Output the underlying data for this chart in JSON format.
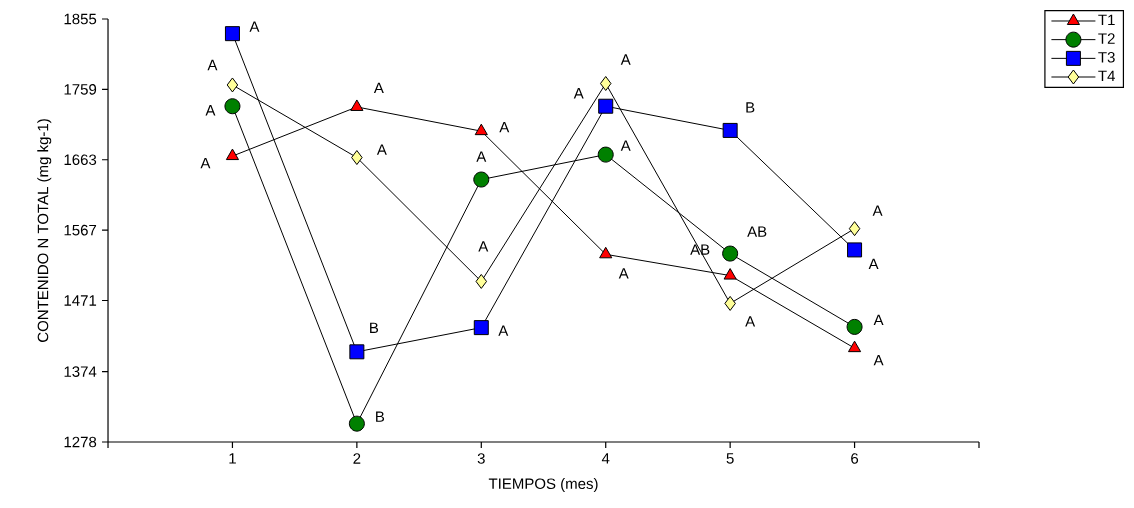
{
  "chart_data": {
    "type": "line",
    "xlabel": "TIEMPOS (mes)",
    "ylabel": "CONTENIDO N TOTAL (mg kg-1)",
    "xlim": [
      0,
      7
    ],
    "xticks": [
      {
        "value": 0,
        "label": null
      },
      1,
      2,
      3,
      4,
      5,
      6,
      {
        "value": 7,
        "label": null
      }
    ],
    "ylim": [
      1278,
      1855
    ],
    "yticks": [
      1278,
      1374,
      1471,
      1567,
      1663,
      1759,
      1855
    ],
    "x": [
      1,
      2,
      3,
      4,
      5,
      6
    ],
    "legend": "top right",
    "grid": false,
    "line_style": "solid",
    "series": [
      {
        "name": "T1",
        "color": "#ff0000",
        "marker": "triangle",
        "values": [
          1668,
          1735,
          1702,
          1534,
          1505,
          1406
        ]
      },
      {
        "name": "T2",
        "color": "#008000",
        "marker": "circle",
        "values": [
          1736,
          1303,
          1636,
          1670,
          1535,
          1435
        ]
      },
      {
        "name": "T3",
        "color": "#0000ff",
        "marker": "square",
        "values": [
          1835,
          1401,
          1434,
          1736,
          1703,
          1540
        ]
      },
      {
        "name": "T4",
        "color": "#ffff99",
        "marker": "diamond",
        "values": [
          1765,
          1666,
          1497,
          1767,
          1467,
          1569
        ]
      }
    ],
    "annotations": [
      {
        "text": "A",
        "x": 1,
        "y": 1668
      },
      {
        "text": "A",
        "x": 2,
        "y": 1735
      },
      {
        "text": "A",
        "x": 3,
        "y": 1702
      },
      {
        "text": "A",
        "x": 4,
        "y": 1534
      },
      {
        "text": "AB",
        "x": 5,
        "y": 1505
      },
      {
        "text": "A",
        "x": 6,
        "y": 1406
      },
      {
        "text": "A",
        "x": 1,
        "y": 1736
      },
      {
        "text": "B",
        "x": 2,
        "y": 1303
      },
      {
        "text": "A",
        "x": 3,
        "y": 1636
      },
      {
        "text": "A",
        "x": 4,
        "y": 1670
      },
      {
        "text": "AB",
        "x": 5,
        "y": 1535
      },
      {
        "text": "A",
        "x": 6,
        "y": 1435
      },
      {
        "text": "A",
        "x": 1,
        "y": 1835
      },
      {
        "text": "B",
        "x": 2,
        "y": 1401
      },
      {
        "text": "A",
        "x": 3,
        "y": 1434
      },
      {
        "text": "A",
        "x": 4,
        "y": 1736
      },
      {
        "text": "B",
        "x": 5,
        "y": 1703
      },
      {
        "text": "A",
        "x": 6,
        "y": 1540
      },
      {
        "text": "A",
        "x": 1,
        "y": 1765
      },
      {
        "text": "A",
        "x": 2,
        "y": 1666
      },
      {
        "text": "A",
        "x": 3,
        "y": 1497
      },
      {
        "text": "A",
        "x": 4,
        "y": 1767
      },
      {
        "text": "A",
        "x": 5,
        "y": 1467
      },
      {
        "text": "A",
        "x": 6,
        "y": 1569
      }
    ]
  }
}
